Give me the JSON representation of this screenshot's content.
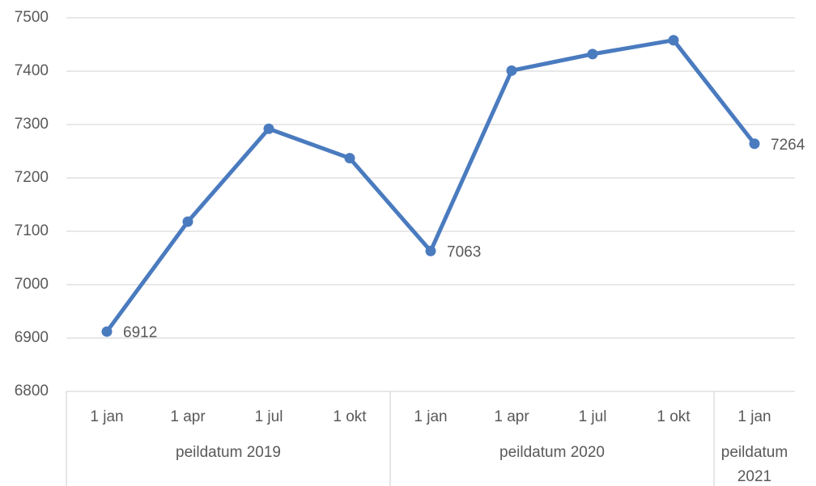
{
  "chart_data": {
    "type": "line",
    "categories": [
      "1 jan",
      "1 apr",
      "1 jul",
      "1 okt",
      "1 jan",
      "1 apr",
      "1 jul",
      "1 okt",
      "1 jan"
    ],
    "groups": [
      {
        "label": "peildatum 2019",
        "span": 4
      },
      {
        "label": "peildatum 2020",
        "span": 4
      },
      {
        "label": "peildatum 2021",
        "span": 1
      }
    ],
    "series": [
      {
        "color": "#4a7bbf",
        "values": [
          6912,
          7118,
          7292,
          7237,
          7063,
          7401,
          7432,
          7458,
          7264
        ]
      }
    ],
    "labeled_points": [
      0,
      4,
      8
    ],
    "ylim": [
      6800,
      7500
    ],
    "yticks": [
      6800,
      6900,
      7000,
      7100,
      7200,
      7300,
      7400,
      7500
    ],
    "grid": true
  }
}
